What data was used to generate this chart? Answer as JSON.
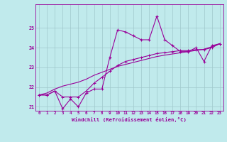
{
  "xlabel": "Windchill (Refroidissement éolien,°C)",
  "bg_color": "#c0eaec",
  "grid_color": "#a0c8cc",
  "line_color": "#990099",
  "xlim": [
    -0.5,
    23.5
  ],
  "ylim": [
    20.8,
    26.2
  ],
  "yticks": [
    21,
    22,
    23,
    24,
    25
  ],
  "xticks": [
    0,
    1,
    2,
    3,
    4,
    5,
    6,
    7,
    8,
    9,
    10,
    11,
    12,
    13,
    14,
    15,
    16,
    17,
    18,
    19,
    20,
    21,
    22,
    23
  ],
  "main_y": [
    21.6,
    21.6,
    21.8,
    20.9,
    21.4,
    21.0,
    21.7,
    21.9,
    21.9,
    23.5,
    24.9,
    24.8,
    24.6,
    24.4,
    24.4,
    25.6,
    24.4,
    24.1,
    23.8,
    23.8,
    24.0,
    23.3,
    24.1,
    24.2
  ],
  "line2_y": [
    21.6,
    21.6,
    21.8,
    21.5,
    21.5,
    21.5,
    21.8,
    22.2,
    22.5,
    22.8,
    23.1,
    23.3,
    23.4,
    23.5,
    23.6,
    23.7,
    23.75,
    23.8,
    23.85,
    23.85,
    23.9,
    23.9,
    24.0,
    24.2
  ],
  "line3_y": [
    21.6,
    21.7,
    21.9,
    22.05,
    22.15,
    22.25,
    22.4,
    22.6,
    22.75,
    22.9,
    23.05,
    23.15,
    23.25,
    23.35,
    23.45,
    23.55,
    23.62,
    23.68,
    23.74,
    23.8,
    23.86,
    23.92,
    24.05,
    24.2
  ]
}
